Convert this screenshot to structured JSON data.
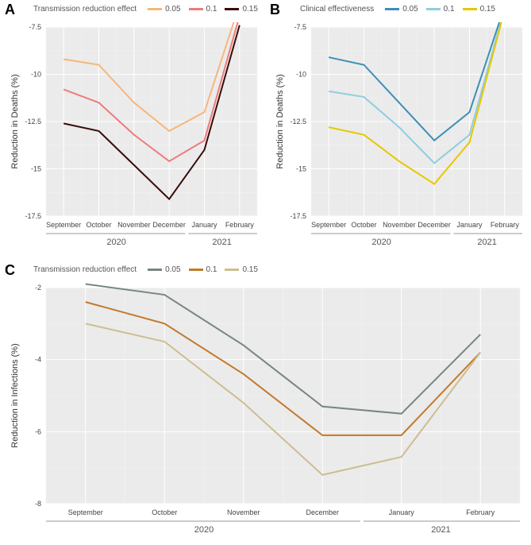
{
  "panels": {
    "A": {
      "label": "A",
      "legend_title": "Transmission reduction effect",
      "ylabel": "Reduction in Deaths (%)",
      "ylim": [
        -17.5,
        -7.5
      ],
      "ytick_step": 2.5,
      "yticks": [
        -17.5,
        -15,
        -12.5,
        -10,
        -7.5
      ],
      "categories": [
        "September",
        "October",
        "November",
        "December",
        "January",
        "February"
      ],
      "year_left": "2020",
      "year_right": "2021",
      "series": [
        {
          "name": "0.05",
          "color": "#f6b77c",
          "values": [
            -9.2,
            -9.5,
            -11.5,
            -13.0,
            -12.0,
            -6.3
          ]
        },
        {
          "name": "0.1",
          "color": "#ef7b7b",
          "values": [
            -10.8,
            -11.5,
            -13.2,
            -14.6,
            -13.5,
            -6.9
          ]
        },
        {
          "name": "0.15",
          "color": "#3a0c0c",
          "values": [
            -12.6,
            -13.0,
            -14.8,
            -16.6,
            -14.0,
            -7.4
          ]
        }
      ],
      "bg": "#ebebeb",
      "grid": "#ffffff",
      "minor_grid": "#f3f3f3",
      "label_fontsize": 11,
      "tick_fontsize": 9,
      "panel_font": 18
    },
    "B": {
      "label": "B",
      "legend_title": "Clinical effectiveness",
      "ylabel": "Reduction in Deaths (%)",
      "ylim": [
        -17.5,
        -7.5
      ],
      "ytick_step": 2.5,
      "yticks": [
        -17.5,
        -15,
        -12.5,
        -10,
        -7.5
      ],
      "categories": [
        "September",
        "October",
        "November",
        "December",
        "January",
        "February"
      ],
      "year_left": "2020",
      "year_right": "2021",
      "series": [
        {
          "name": "0.05",
          "color": "#3c8fb5",
          "values": [
            -9.1,
            -9.5,
            -11.5,
            -13.5,
            -12.0,
            -6.4
          ]
        },
        {
          "name": "0.1",
          "color": "#8fcde0",
          "values": [
            -10.9,
            -11.2,
            -12.8,
            -14.7,
            -13.2,
            -6.5
          ]
        },
        {
          "name": "0.15",
          "color": "#e6c800",
          "values": [
            -12.8,
            -13.2,
            -14.6,
            -15.8,
            -13.6,
            -6.6
          ]
        }
      ],
      "bg": "#ebebeb",
      "grid": "#ffffff",
      "minor_grid": "#f3f3f3",
      "label_fontsize": 11,
      "tick_fontsize": 9,
      "panel_font": 18
    },
    "C": {
      "label": "C",
      "legend_title": "Transmission reduction effect",
      "ylabel": "Reduction in Infections (%)",
      "ylim": [
        -8,
        -2
      ],
      "ytick_step": 2,
      "yticks": [
        -8,
        -6,
        -4,
        -2
      ],
      "categories": [
        "September",
        "October",
        "November",
        "December",
        "January",
        "February"
      ],
      "year_left": "2020",
      "year_right": "2021",
      "series": [
        {
          "name": "0.05",
          "color": "#78877f",
          "values": [
            -1.9,
            -2.2,
            -3.6,
            -5.3,
            -5.5,
            -3.3
          ]
        },
        {
          "name": "0.1",
          "color": "#c27a2b",
          "values": [
            -2.4,
            -3.0,
            -4.4,
            -6.1,
            -6.1,
            -3.8
          ]
        },
        {
          "name": "0.15",
          "color": "#cdbd91",
          "values": [
            -3.0,
            -3.5,
            -5.2,
            -7.2,
            -6.7,
            -3.8
          ]
        }
      ],
      "bg": "#ebebeb",
      "grid": "#ffffff",
      "minor_grid": "#f3f3f3",
      "label_fontsize": 11,
      "tick_fontsize": 9,
      "panel_font": 18
    }
  }
}
